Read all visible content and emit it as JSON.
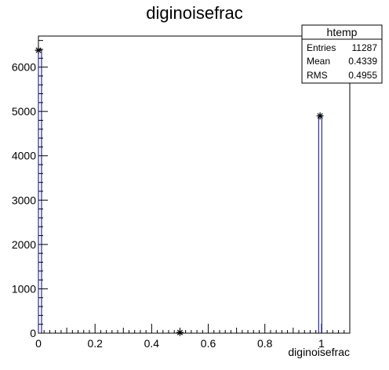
{
  "chart_data": {
    "type": "bar",
    "title": "diginoisefrac",
    "xlabel": "diginoisefrac",
    "ylabel": "",
    "xlim": [
      0,
      1.1
    ],
    "ylim": [
      0,
      6700
    ],
    "x_ticks": [
      0,
      0.2,
      0.4,
      0.6,
      0.8,
      1
    ],
    "x_tick_labels": [
      "0",
      "0.2",
      "0.4",
      "0.6",
      "0.8",
      "1"
    ],
    "y_ticks": [
      0,
      1000,
      2000,
      3000,
      4000,
      5000,
      6000
    ],
    "y_tick_labels": [
      "0",
      "1000",
      "2000",
      "3000",
      "4000",
      "5000",
      "6000"
    ],
    "bin_width": 0.011,
    "bars": [
      {
        "x": 0.0,
        "value": 6380
      },
      {
        "x": 0.495,
        "value": 0
      },
      {
        "x": 0.99,
        "value": 4900
      }
    ],
    "markers": [
      {
        "x": 0.0,
        "y": 6380
      },
      {
        "x": 0.5,
        "y": 15
      },
      {
        "x": 0.995,
        "y": 4900
      }
    ],
    "line_color": "#000080",
    "grid": false
  },
  "stats": {
    "name": "htemp",
    "rows": [
      {
        "label": "Entries",
        "value": "11287"
      },
      {
        "label": "Mean",
        "value": "0.4339"
      },
      {
        "label": "RMS",
        "value": "0.4955"
      }
    ]
  }
}
